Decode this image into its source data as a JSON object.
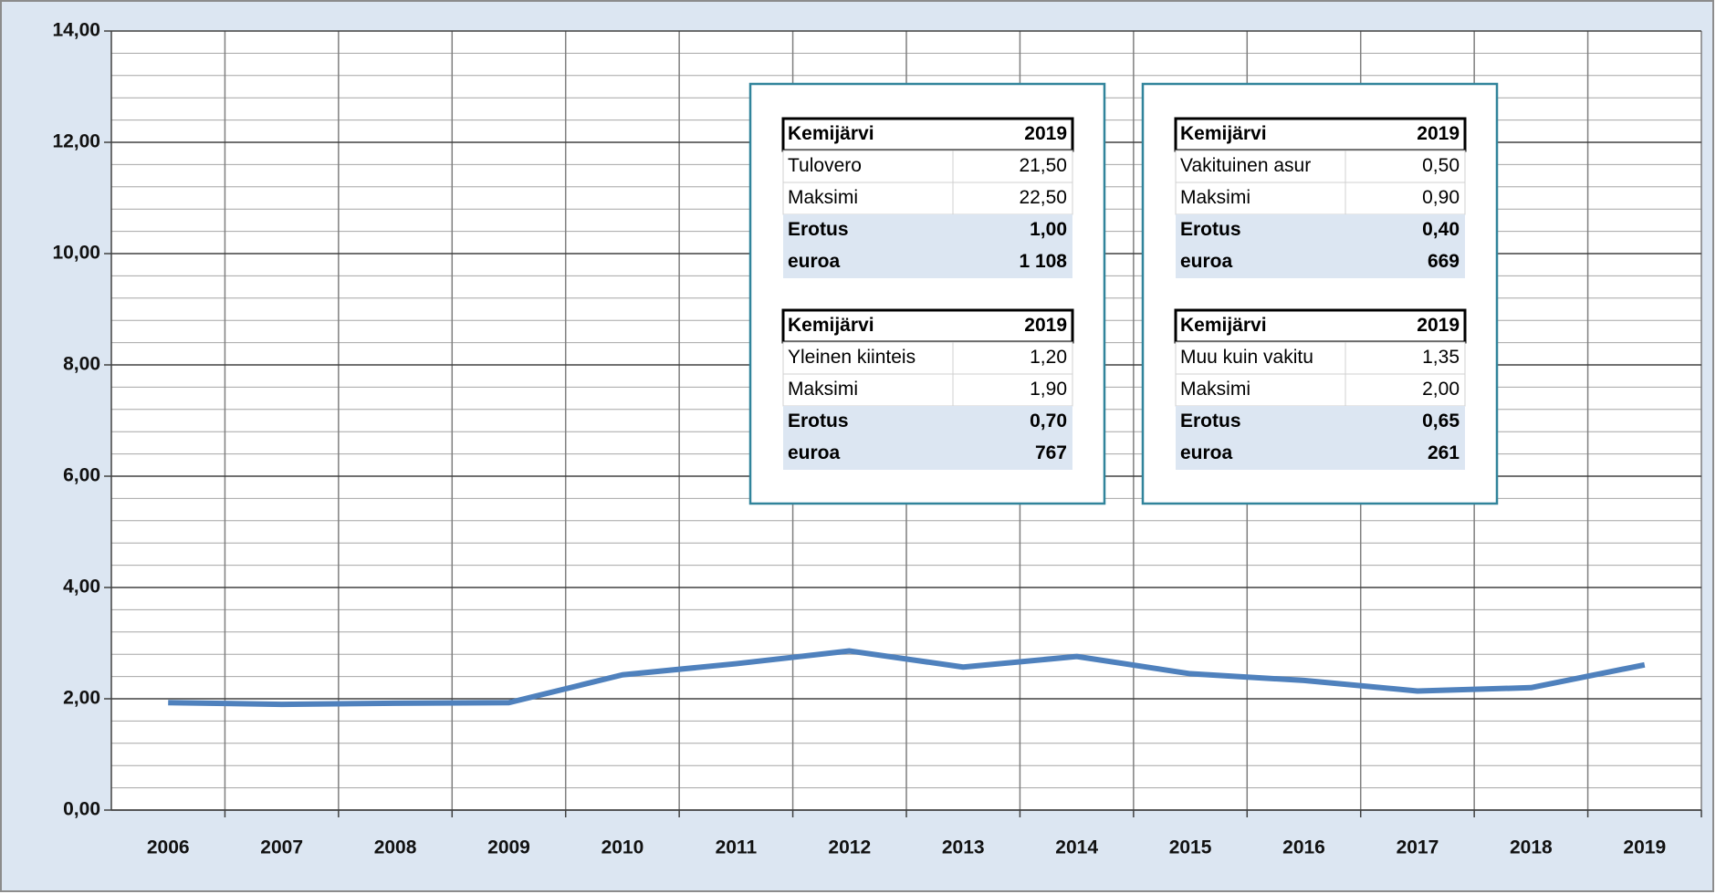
{
  "chart_data": {
    "type": "line",
    "categories": [
      "2006",
      "2007",
      "2008",
      "2009",
      "2010",
      "2011",
      "2012",
      "2013",
      "2014",
      "2015",
      "2016",
      "2017",
      "2018",
      "2019"
    ],
    "series": [
      {
        "color": "#4f81bd",
        "values": [
          1.93,
          1.9,
          1.92,
          1.93,
          2.43,
          2.63,
          2.86,
          2.57,
          2.76,
          2.45,
          2.33,
          2.14,
          2.2,
          2.61
        ]
      }
    ],
    "ylim": [
      0,
      14
    ],
    "yticks": [
      {
        "value": 0,
        "label": "0,00"
      },
      {
        "value": 2,
        "label": "2,00"
      },
      {
        "value": 4,
        "label": "4,00"
      },
      {
        "value": 6,
        "label": "6,00"
      },
      {
        "value": 8,
        "label": "8,00"
      },
      {
        "value": 10,
        "label": "10,00"
      },
      {
        "value": 12,
        "label": "12,00"
      },
      {
        "value": 14,
        "label": "14,00"
      }
    ],
    "grid": true,
    "minor_grid_divisions": 5,
    "tables": [
      {
        "rows": [
          [
            "Kemijärvi",
            "2019"
          ],
          [
            "Tulovero",
            "21,50"
          ],
          [
            "Maksimi",
            "22,50"
          ],
          [
            "Erotus",
            "1,00"
          ],
          [
            "euroa",
            "1 108"
          ]
        ]
      },
      {
        "rows": [
          [
            "Kemijärvi",
            "2019"
          ],
          [
            "Vakituinen asur",
            "0,50"
          ],
          [
            "Maksimi",
            "0,90"
          ],
          [
            "Erotus",
            "0,40"
          ],
          [
            "euroa",
            "669"
          ]
        ]
      },
      {
        "rows": [
          [
            "Kemijärvi",
            "2019"
          ],
          [
            "Yleinen kiinteis",
            "1,20"
          ],
          [
            "Maksimi",
            "1,90"
          ],
          [
            "Erotus",
            "0,70"
          ],
          [
            "euroa",
            "767"
          ]
        ]
      },
      {
        "rows": [
          [
            "Kemijärvi",
            "2019"
          ],
          [
            "Muu kuin vakitu",
            "1,35"
          ],
          [
            "Maksimi",
            "2,00"
          ],
          [
            "Erotus",
            "0,65"
          ],
          [
            "euroa",
            "261"
          ]
        ]
      }
    ]
  }
}
